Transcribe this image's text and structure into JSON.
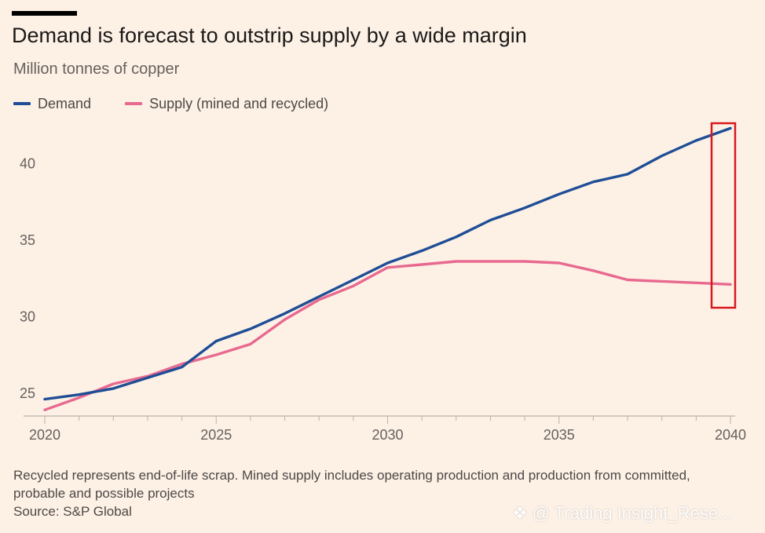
{
  "title": "Demand is forecast to outstrip supply by a wide margin",
  "subtitle": "Million tonnes of copper",
  "footnote": "Recycled represents end-of-life scrap. Mined supply includes operating production and production from committed, probable and possible projects",
  "source": "Source: S&P Global",
  "watermark": "@ Trading Insight_Rese...",
  "colors": {
    "background": "#fdf1e6",
    "demand": "#1f4e96",
    "supply": "#e8698f",
    "highlight": "#d7191c",
    "axis": "#b9b1aa"
  },
  "chart_data": {
    "type": "line",
    "ylim": [
      23.5,
      43.5
    ],
    "xlim": [
      2020,
      2040
    ],
    "x_ticks": [
      "2020",
      "2025",
      "2030",
      "2035",
      "2040"
    ],
    "y_ticks": [
      "25",
      "30",
      "35",
      "40"
    ],
    "grid": false,
    "legend_position": "top-left",
    "x": [
      2020,
      2021,
      2022,
      2023,
      2024,
      2025,
      2026,
      2027,
      2028,
      2029,
      2030,
      2031,
      2032,
      2033,
      2034,
      2035,
      2036,
      2037,
      2038,
      2039,
      2040
    ],
    "series": [
      {
        "name": "Demand",
        "values": [
          24.6,
          24.9,
          25.3,
          26.0,
          26.7,
          28.4,
          29.2,
          30.2,
          31.3,
          32.4,
          33.5,
          34.3,
          35.2,
          36.3,
          37.1,
          38.0,
          38.8,
          39.3,
          40.5,
          41.5,
          42.3
        ]
      },
      {
        "name": "Supply (mined and recycled)",
        "values": [
          23.9,
          24.7,
          25.6,
          26.1,
          26.9,
          27.5,
          28.2,
          29.8,
          31.1,
          32.0,
          33.2,
          33.4,
          33.6,
          33.6,
          33.6,
          33.5,
          33.0,
          32.4,
          32.3,
          32.2,
          32.1
        ]
      }
    ],
    "highlight_x": 2040
  }
}
